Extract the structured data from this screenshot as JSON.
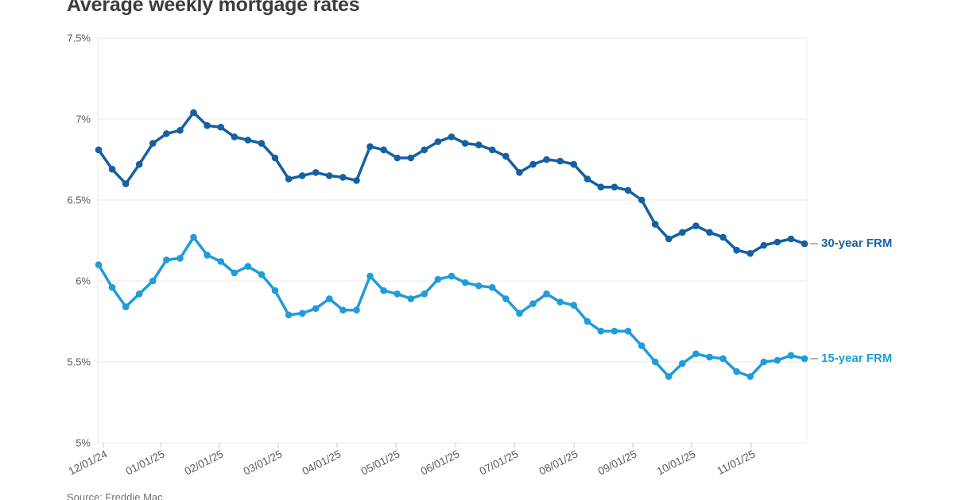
{
  "page": {
    "title": "Average weekly mortgage rates",
    "source": "Source: Freddie Mac"
  },
  "chart_data": {
    "type": "line",
    "title": "Average weekly mortgage rates",
    "xlabel": "",
    "ylabel": "",
    "ylim": [
      5,
      7.5
    ],
    "grid": "horizontal",
    "legend_position": "right-of-line-end",
    "y_tick_labels": [
      "7.5%",
      "7%",
      "6.5%",
      "6%",
      "5.5%",
      "5%"
    ],
    "y_tick_values": [
      7.5,
      7.0,
      6.5,
      6.0,
      5.5,
      5.0
    ],
    "x_tick_labels": [
      "12/01/24",
      "01/01/25",
      "02/01/25",
      "03/01/25",
      "04/01/25",
      "05/01/25",
      "06/01/25",
      "07/01/25",
      "08/01/25",
      "09/01/25",
      "10/01/25",
      "11/01/25"
    ],
    "x_weeks": [
      "11/27/24",
      "12/05/24",
      "12/12/24",
      "12/19/24",
      "12/26/24",
      "01/02/25",
      "01/09/25",
      "01/16/25",
      "01/23/25",
      "01/30/25",
      "02/06/25",
      "02/13/25",
      "02/20/25",
      "02/27/25",
      "03/06/25",
      "03/13/25",
      "03/20/25",
      "03/27/25",
      "04/03/25",
      "04/10/25",
      "04/17/25",
      "04/24/25",
      "05/01/25",
      "05/08/25",
      "05/15/25",
      "05/22/25",
      "05/29/25",
      "06/05/25",
      "06/12/25",
      "06/18/25",
      "06/26/25",
      "07/03/25",
      "07/10/25",
      "07/17/25",
      "07/24/25",
      "07/31/25",
      "08/07/25",
      "08/14/25",
      "08/21/25",
      "08/28/25",
      "09/04/25",
      "09/11/25",
      "09/18/25",
      "09/25/25",
      "10/02/25",
      "10/09/25",
      "10/16/25",
      "10/23/25",
      "10/30/25",
      "11/06/25",
      "11/13/25",
      "11/20/25",
      "11/26/25"
    ],
    "series": [
      {
        "name": "30-year FRM",
        "color": "#1560A2",
        "values": [
          6.81,
          6.69,
          6.6,
          6.72,
          6.85,
          6.91,
          6.93,
          7.04,
          6.96,
          6.95,
          6.89,
          6.87,
          6.85,
          6.76,
          6.63,
          6.65,
          6.67,
          6.65,
          6.64,
          6.62,
          6.83,
          6.81,
          6.76,
          6.76,
          6.81,
          6.86,
          6.89,
          6.85,
          6.84,
          6.81,
          6.77,
          6.67,
          6.72,
          6.75,
          6.74,
          6.72,
          6.63,
          6.58,
          6.58,
          6.56,
          6.5,
          6.35,
          6.26,
          6.3,
          6.34,
          6.3,
          6.27,
          6.19,
          6.17,
          6.22,
          6.24,
          6.26,
          6.23
        ]
      },
      {
        "name": "15-year FRM",
        "color": "#1F9CD9",
        "values": [
          6.1,
          5.96,
          5.84,
          5.92,
          6.0,
          6.13,
          6.14,
          6.27,
          6.16,
          6.12,
          6.05,
          6.09,
          6.04,
          5.94,
          5.79,
          5.8,
          5.83,
          5.89,
          5.82,
          5.82,
          6.03,
          5.94,
          5.92,
          5.89,
          5.92,
          6.01,
          6.03,
          5.99,
          5.97,
          5.96,
          5.89,
          5.8,
          5.86,
          5.92,
          5.87,
          5.85,
          5.75,
          5.69,
          5.69,
          5.69,
          5.6,
          5.5,
          5.41,
          5.49,
          5.55,
          5.53,
          5.52,
          5.44,
          5.41,
          5.5,
          5.51,
          5.54,
          5.52
        ]
      }
    ]
  },
  "colors": {
    "grid": "#e9e9e9",
    "axis_text": "#5b5b5b",
    "title_text": "#3c3c3c",
    "legend_dash": "#9b9b9b"
  }
}
